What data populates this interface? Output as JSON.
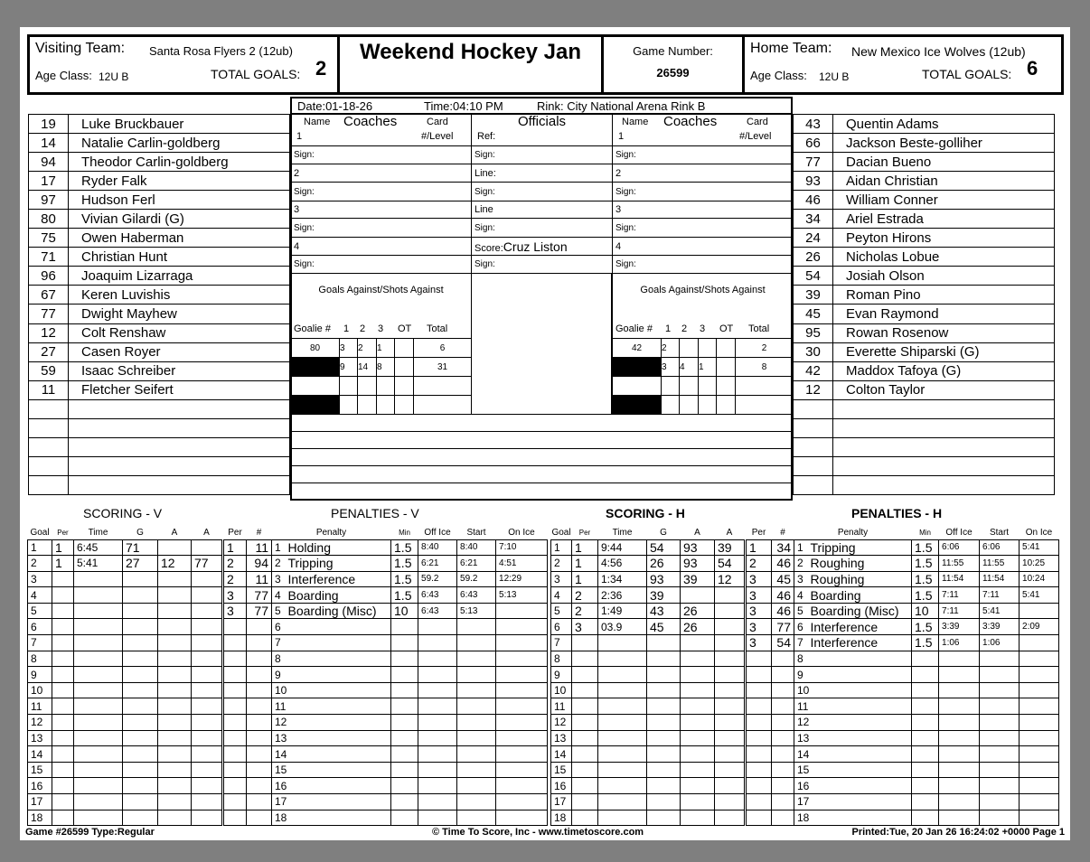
{
  "header": {
    "visiting_label": "Visiting Team:",
    "visiting_team": "Santa Rosa Flyers 2 (12ub)",
    "visiting_age_label": "Age Class:",
    "visiting_age": "12U B",
    "total_goals_label": "TOTAL GOALS:",
    "visiting_goals": "2",
    "title": "Weekend Hockey Jan",
    "game_number_label": "Game Number:",
    "game_number": "26599",
    "home_label": "Home Team:",
    "home_team": "New Mexico Ice Wolves (12ub)",
    "home_age_label": "Age Class:",
    "home_age": "12U B",
    "home_goals": "6"
  },
  "info": {
    "date": "Date:01-18-26",
    "time": "Time:04:10 PM",
    "rink": "Rink: City National Arena Rink B"
  },
  "visitor_roster": [
    [
      "19",
      "Luke Bruckbauer"
    ],
    [
      "14",
      "Natalie Carlin-goldberg"
    ],
    [
      "94",
      "Theodor Carlin-goldberg"
    ],
    [
      "17",
      "Ryder Falk"
    ],
    [
      "97",
      "Hudson Ferl"
    ],
    [
      "80",
      "Vivian Gilardi  (G)"
    ],
    [
      "75",
      "Owen Haberman"
    ],
    [
      "71",
      "Christian Hunt"
    ],
    [
      "96",
      "Joaquim Lizarraga"
    ],
    [
      "67",
      "Keren Luvishis"
    ],
    [
      "77",
      "Dwight Mayhew"
    ],
    [
      "12",
      "Colt Renshaw"
    ],
    [
      "27",
      "Casen Royer"
    ],
    [
      "59",
      "Isaac Schreiber"
    ],
    [
      "11",
      "Fletcher Seifert"
    ],
    [
      "",
      ""
    ],
    [
      "",
      ""
    ],
    [
      "",
      ""
    ],
    [
      "",
      ""
    ],
    [
      "",
      ""
    ]
  ],
  "home_roster": [
    [
      "43",
      "Quentin Adams"
    ],
    [
      "66",
      "Jackson Beste-golliher"
    ],
    [
      "77",
      "Dacian Bueno"
    ],
    [
      "93",
      "Aidan Christian"
    ],
    [
      "46",
      "William Conner"
    ],
    [
      "34",
      "Ariel Estrada"
    ],
    [
      "24",
      "Peyton Hirons"
    ],
    [
      "26",
      "Nicholas Lobue"
    ],
    [
      "54",
      "Josiah Olson"
    ],
    [
      "39",
      "Roman Pino"
    ],
    [
      "45",
      "Evan Raymond"
    ],
    [
      "95",
      "Rowan Rosenow"
    ],
    [
      "30",
      "Everette Shiparski  (G)"
    ],
    [
      "42",
      "Maddox Tafoya  (G)"
    ],
    [
      "12",
      "Colton Taylor"
    ],
    [
      "",
      ""
    ],
    [
      "",
      ""
    ],
    [
      "",
      ""
    ],
    [
      "",
      ""
    ],
    [
      "",
      ""
    ]
  ],
  "middle": {
    "name_label": "Name",
    "coaches_label": "Coaches",
    "card_label": "Card",
    "level_label": "#/Level",
    "officials_label": "Officials",
    "rows": [
      [
        "1",
        "Ref:",
        "1"
      ],
      [
        "Sign:",
        "Sign:",
        "Sign:"
      ],
      [
        "2",
        "Line:",
        "2"
      ],
      [
        "Sign:",
        "Sign:",
        "Sign:"
      ],
      [
        "3",
        "Line",
        "3"
      ],
      [
        "Sign:",
        "Sign:",
        "Sign:"
      ],
      [
        "4",
        "Score:",
        "4"
      ],
      [
        "Sign:",
        "Sign:",
        "Sign:"
      ]
    ],
    "scorekeeper": "Cruz Liston",
    "goalie_title": "Goals Against/Shots Against",
    "goalie_cols": [
      "Goalie #",
      "1",
      "2",
      "3",
      "OT",
      "Total"
    ],
    "visitor_goalie": [
      [
        "80",
        "3",
        "2",
        "1",
        "",
        "6"
      ],
      [
        "",
        "9",
        "14",
        "8",
        "",
        "31"
      ],
      [
        "",
        "",
        "",
        "",
        "",
        ""
      ],
      [
        "",
        "",
        "",
        "",
        "",
        ""
      ]
    ],
    "home_goalie": [
      [
        "42",
        "2",
        "",
        "",
        "",
        "2"
      ],
      [
        "",
        "3",
        "4",
        "1",
        "",
        "8"
      ],
      [
        "",
        "",
        "",
        "",
        "",
        ""
      ],
      [
        "",
        "",
        "",
        "",
        "",
        ""
      ]
    ]
  },
  "sections": {
    "scoring_v": "SCORING - V",
    "penalties_v": "PENALTIES - V",
    "scoring_h": "SCORING - H",
    "penalties_h": "PENALTIES - H"
  },
  "scoring_cols": [
    "Goal",
    "Per",
    "Time",
    "G",
    "A",
    "A"
  ],
  "penalty_cols": [
    "Per",
    "#",
    "Penalty",
    "Min",
    "Off Ice",
    "Start",
    "On Ice"
  ],
  "scoring_v": [
    [
      "1",
      "1",
      "6:45",
      "71",
      "",
      ""
    ],
    [
      "2",
      "1",
      "5:41",
      "27",
      "12",
      "77"
    ],
    [
      "3",
      "",
      "",
      "",
      "",
      ""
    ],
    [
      "4",
      "",
      "",
      "",
      "",
      ""
    ],
    [
      "5",
      "",
      "",
      "",
      "",
      ""
    ],
    [
      "6",
      "",
      "",
      "",
      "",
      ""
    ],
    [
      "7",
      "",
      "",
      "",
      "",
      ""
    ],
    [
      "8",
      "",
      "",
      "",
      "",
      ""
    ],
    [
      "9",
      "",
      "",
      "",
      "",
      ""
    ],
    [
      "10",
      "",
      "",
      "",
      "",
      ""
    ],
    [
      "11",
      "",
      "",
      "",
      "",
      ""
    ],
    [
      "12",
      "",
      "",
      "",
      "",
      ""
    ],
    [
      "13",
      "",
      "",
      "",
      "",
      ""
    ],
    [
      "14",
      "",
      "",
      "",
      "",
      ""
    ],
    [
      "15",
      "",
      "",
      "",
      "",
      ""
    ],
    [
      "16",
      "",
      "",
      "",
      "",
      ""
    ],
    [
      "17",
      "",
      "",
      "",
      "",
      ""
    ],
    [
      "18",
      "",
      "",
      "",
      "",
      ""
    ]
  ],
  "penalties_v": [
    [
      "1",
      "11",
      "1",
      "Holding",
      "1.5",
      "8:40",
      "8:40",
      "7:10"
    ],
    [
      "2",
      "94",
      "2",
      "Tripping",
      "1.5",
      "6:21",
      "6:21",
      "4:51"
    ],
    [
      "2",
      "11",
      "3",
      "Interference",
      "1.5",
      "59.2",
      "59.2",
      "12:29"
    ],
    [
      "3",
      "77",
      "4",
      "Boarding",
      "1.5",
      "6:43",
      "6:43",
      "5:13"
    ],
    [
      "3",
      "77",
      "5",
      "Boarding (Misc)",
      "10",
      "6:43",
      "5:13",
      ""
    ],
    [
      "",
      "",
      "6",
      "",
      "",
      "",
      "",
      ""
    ],
    [
      "",
      "",
      "7",
      "",
      "",
      "",
      "",
      ""
    ],
    [
      "",
      "",
      "8",
      "",
      "",
      "",
      "",
      ""
    ],
    [
      "",
      "",
      "9",
      "",
      "",
      "",
      "",
      ""
    ],
    [
      "",
      "",
      "10",
      "",
      "",
      "",
      "",
      ""
    ],
    [
      "",
      "",
      "11",
      "",
      "",
      "",
      "",
      ""
    ],
    [
      "",
      "",
      "12",
      "",
      "",
      "",
      "",
      ""
    ],
    [
      "",
      "",
      "13",
      "",
      "",
      "",
      "",
      ""
    ],
    [
      "",
      "",
      "14",
      "",
      "",
      "",
      "",
      ""
    ],
    [
      "",
      "",
      "15",
      "",
      "",
      "",
      "",
      ""
    ],
    [
      "",
      "",
      "16",
      "",
      "",
      "",
      "",
      ""
    ],
    [
      "",
      "",
      "17",
      "",
      "",
      "",
      "",
      ""
    ],
    [
      "",
      "",
      "18",
      "",
      "",
      "",
      "",
      ""
    ]
  ],
  "scoring_h": [
    [
      "1",
      "1",
      "9:44",
      "54",
      "93",
      "39"
    ],
    [
      "2",
      "1",
      "4:56",
      "26",
      "93",
      "54"
    ],
    [
      "3",
      "1",
      "1:34",
      "93",
      "39",
      "12"
    ],
    [
      "4",
      "2",
      "2:36",
      "39",
      "",
      ""
    ],
    [
      "5",
      "2",
      "1:49",
      "43",
      "26",
      ""
    ],
    [
      "6",
      "3",
      "03.9",
      "45",
      "26",
      ""
    ],
    [
      "7",
      "",
      "",
      "",
      "",
      ""
    ],
    [
      "8",
      "",
      "",
      "",
      "",
      ""
    ],
    [
      "9",
      "",
      "",
      "",
      "",
      ""
    ],
    [
      "10",
      "",
      "",
      "",
      "",
      ""
    ],
    [
      "11",
      "",
      "",
      "",
      "",
      ""
    ],
    [
      "12",
      "",
      "",
      "",
      "",
      ""
    ],
    [
      "13",
      "",
      "",
      "",
      "",
      ""
    ],
    [
      "14",
      "",
      "",
      "",
      "",
      ""
    ],
    [
      "15",
      "",
      "",
      "",
      "",
      ""
    ],
    [
      "16",
      "",
      "",
      "",
      "",
      ""
    ],
    [
      "17",
      "",
      "",
      "",
      "",
      ""
    ],
    [
      "18",
      "",
      "",
      "",
      "",
      ""
    ]
  ],
  "penalties_h": [
    [
      "1",
      "34",
      "1",
      "Tripping",
      "1.5",
      "6:06",
      "6:06",
      "5:41"
    ],
    [
      "2",
      "46",
      "2",
      "Roughing",
      "1.5",
      "11:55",
      "11:55",
      "10:25"
    ],
    [
      "3",
      "45",
      "3",
      "Roughing",
      "1.5",
      "11:54",
      "11:54",
      "10:24"
    ],
    [
      "3",
      "46",
      "4",
      "Boarding",
      "1.5",
      "7:11",
      "7:11",
      "5:41"
    ],
    [
      "3",
      "46",
      "5",
      "Boarding (Misc)",
      "10",
      "7:11",
      "5:41",
      ""
    ],
    [
      "3",
      "77",
      "6",
      "Interference",
      "1.5",
      "3:39",
      "3:39",
      "2:09"
    ],
    [
      "3",
      "54",
      "7",
      "Interference",
      "1.5",
      "1:06",
      "1:06",
      ""
    ],
    [
      "",
      "",
      "8",
      "",
      "",
      "",
      "",
      ""
    ],
    [
      "",
      "",
      "9",
      "",
      "",
      "",
      "",
      ""
    ],
    [
      "",
      "",
      "10",
      "",
      "",
      "",
      "",
      ""
    ],
    [
      "",
      "",
      "11",
      "",
      "",
      "",
      "",
      ""
    ],
    [
      "",
      "",
      "12",
      "",
      "",
      "",
      "",
      ""
    ],
    [
      "",
      "",
      "13",
      "",
      "",
      "",
      "",
      ""
    ],
    [
      "",
      "",
      "14",
      "",
      "",
      "",
      "",
      ""
    ],
    [
      "",
      "",
      "15",
      "",
      "",
      "",
      "",
      ""
    ],
    [
      "",
      "",
      "16",
      "",
      "",
      "",
      "",
      ""
    ],
    [
      "",
      "",
      "17",
      "",
      "",
      "",
      "",
      ""
    ],
    [
      "",
      "",
      "18",
      "",
      "",
      "",
      "",
      ""
    ]
  ],
  "footer": {
    "left": "Game #26599 Type:Regular",
    "center": "© Time To Score, Inc - www.timetoscore.com",
    "right": "Printed:Tue, 20 Jan 26 16:24:02 +0000 Page 1"
  }
}
